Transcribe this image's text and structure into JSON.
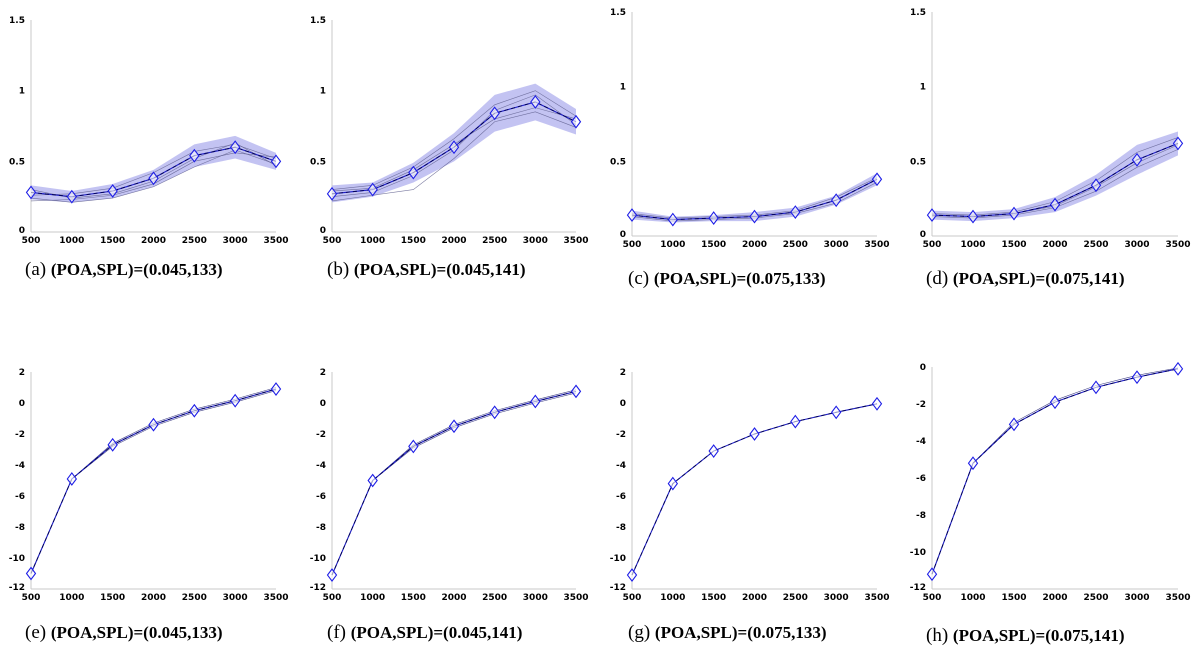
{
  "figure": {
    "x_ticks": [
      "500",
      "1000",
      "1500",
      "2000",
      "2500",
      "3000",
      "3500"
    ]
  },
  "chart_data": [
    {
      "type": "line",
      "panel": "a",
      "caption_label": "(a)",
      "caption_text": "(POA,SPL)=(0.045,133)",
      "x": [
        500,
        1000,
        1500,
        2000,
        2500,
        3000,
        3500
      ],
      "xlim": [
        500,
        3500
      ],
      "ylim": [
        0,
        1.5
      ],
      "y_ticks": [
        "0",
        "0.5",
        "1",
        "1.5"
      ],
      "band": true,
      "mean": [
        0.28,
        0.25,
        0.29,
        0.38,
        0.54,
        0.6,
        0.5
      ],
      "spread": [
        0.05,
        0.04,
        0.05,
        0.06,
        0.08,
        0.08,
        0.06
      ],
      "subject_curves": [
        [
          0.24,
          0.21,
          0.24,
          0.32,
          0.46,
          0.58,
          0.48
        ],
        [
          0.26,
          0.27,
          0.31,
          0.42,
          0.57,
          0.62,
          0.52
        ],
        [
          0.3,
          0.24,
          0.27,
          0.36,
          0.52,
          0.63,
          0.47
        ],
        [
          0.22,
          0.23,
          0.26,
          0.34,
          0.5,
          0.56,
          0.53
        ]
      ]
    },
    {
      "type": "line",
      "panel": "b",
      "caption_label": "(b)",
      "caption_text": "(POA,SPL)=(0.045,141)",
      "x": [
        500,
        1000,
        1500,
        2000,
        2500,
        3000,
        3500
      ],
      "xlim": [
        500,
        3500
      ],
      "ylim": [
        0,
        1.5
      ],
      "y_ticks": [
        "0",
        "0.5",
        "1",
        "1.5"
      ],
      "band": true,
      "mean": [
        0.27,
        0.3,
        0.42,
        0.6,
        0.84,
        0.92,
        0.78
      ],
      "spread": [
        0.06,
        0.05,
        0.07,
        0.1,
        0.13,
        0.13,
        0.09
      ],
      "subject_curves": [
        [
          0.22,
          0.26,
          0.3,
          0.52,
          0.78,
          0.85,
          0.74
        ],
        [
          0.3,
          0.33,
          0.46,
          0.66,
          0.9,
          1.0,
          0.82
        ],
        [
          0.25,
          0.28,
          0.4,
          0.58,
          0.86,
          0.97,
          0.76
        ],
        [
          0.29,
          0.31,
          0.44,
          0.62,
          0.8,
          0.88,
          0.8
        ]
      ]
    },
    {
      "type": "line",
      "panel": "c",
      "caption_label": "(c)",
      "caption_text": "(POA,SPL)=(0.075,133)",
      "x": [
        500,
        1000,
        1500,
        2000,
        2500,
        3000,
        3500
      ],
      "xlim": [
        500,
        3500
      ],
      "ylim": [
        0,
        1.5
      ],
      "y_ticks": [
        "0",
        "0.5",
        "1",
        "1.5"
      ],
      "band": true,
      "mean": [
        0.14,
        0.11,
        0.12,
        0.13,
        0.16,
        0.24,
        0.38
      ],
      "spread": [
        0.03,
        0.02,
        0.02,
        0.03,
        0.03,
        0.03,
        0.04
      ],
      "subject_curves": [
        [
          0.13,
          0.1,
          0.11,
          0.12,
          0.15,
          0.22,
          0.36
        ],
        [
          0.15,
          0.12,
          0.13,
          0.14,
          0.17,
          0.26,
          0.39
        ]
      ]
    },
    {
      "type": "line",
      "panel": "d",
      "caption_label": "(d)",
      "caption_text": "(POA,SPL)=(0.075,141)",
      "x": [
        500,
        1000,
        1500,
        2000,
        2500,
        3000,
        3500
      ],
      "xlim": [
        500,
        3500
      ],
      "ylim": [
        0,
        1.5
      ],
      "y_ticks": [
        "0",
        "0.5",
        "1",
        "1.5"
      ],
      "band": true,
      "mean": [
        0.14,
        0.13,
        0.15,
        0.21,
        0.34,
        0.51,
        0.62
      ],
      "spread": [
        0.03,
        0.03,
        0.03,
        0.05,
        0.07,
        0.1,
        0.08
      ],
      "subject_curves": [
        [
          0.13,
          0.12,
          0.14,
          0.19,
          0.3,
          0.46,
          0.58
        ],
        [
          0.15,
          0.14,
          0.16,
          0.23,
          0.37,
          0.56,
          0.66
        ],
        [
          0.14,
          0.13,
          0.15,
          0.2,
          0.33,
          0.49,
          0.61
        ]
      ]
    },
    {
      "type": "line",
      "panel": "e",
      "caption_label": "(e)",
      "caption_text": "(POA,SPL)=(0.045,133)",
      "x": [
        500,
        1000,
        1500,
        2000,
        2500,
        3000,
        3500
      ],
      "xlim": [
        500,
        3500
      ],
      "ylim": [
        -12,
        2
      ],
      "y_ticks": [
        "-12",
        "-10",
        "-8",
        "-6",
        "-4",
        "-2",
        "0",
        "2"
      ],
      "band": false,
      "mean": [
        -11.0,
        -4.9,
        -2.7,
        -1.4,
        -0.5,
        0.15,
        0.9
      ],
      "spread": [
        0,
        0,
        0,
        0,
        0,
        0,
        0
      ],
      "subject_curves": [
        [
          -11.0,
          -4.9,
          -2.6,
          -1.3,
          -0.4,
          0.25,
          1.0
        ],
        [
          -11.0,
          -4.9,
          -2.8,
          -1.5,
          -0.6,
          0.05,
          0.8
        ]
      ]
    },
    {
      "type": "line",
      "panel": "f",
      "caption_label": "(f)",
      "caption_text": "(POA,SPL)=(0.045,141)",
      "x": [
        500,
        1000,
        1500,
        2000,
        2500,
        3000,
        3500
      ],
      "xlim": [
        500,
        3500
      ],
      "ylim": [
        -12,
        2
      ],
      "y_ticks": [
        "-12",
        "-10",
        "-8",
        "-6",
        "-4",
        "-2",
        "0",
        "2"
      ],
      "band": false,
      "mean": [
        -11.1,
        -5.0,
        -2.8,
        -1.5,
        -0.6,
        0.1,
        0.75
      ],
      "spread": [
        0,
        0,
        0,
        0,
        0,
        0,
        0
      ],
      "subject_curves": [
        [
          -11.1,
          -5.0,
          -2.7,
          -1.4,
          -0.5,
          0.2,
          0.85
        ],
        [
          -11.1,
          -5.0,
          -2.9,
          -1.6,
          -0.7,
          0.0,
          0.65
        ]
      ]
    },
    {
      "type": "line",
      "panel": "g",
      "caption_label": "(g)",
      "caption_text": "(POA,SPL)=(0.075,133)",
      "x": [
        500,
        1000,
        1500,
        2000,
        2500,
        3000,
        3500
      ],
      "xlim": [
        500,
        3500
      ],
      "ylim": [
        -12,
        2
      ],
      "y_ticks": [
        "-12",
        "-10",
        "-8",
        "-6",
        "-4",
        "-2",
        "0",
        "2"
      ],
      "band": false,
      "mean": [
        -11.1,
        -5.2,
        -3.1,
        -2.0,
        -1.2,
        -0.6,
        -0.05
      ],
      "spread": [
        0,
        0,
        0,
        0,
        0,
        0,
        0
      ],
      "subject_curves": []
    },
    {
      "type": "line",
      "panel": "h",
      "caption_label": "(h)",
      "caption_text": "(POA,SPL)=(0.075,141)",
      "x": [
        500,
        1000,
        1500,
        2000,
        2500,
        3000,
        3500
      ],
      "xlim": [
        500,
        3500
      ],
      "ylim": [
        -12,
        0
      ],
      "y_ticks": [
        "-12",
        "-10",
        "-8",
        "-6",
        "-4",
        "-2",
        "0"
      ],
      "band": false,
      "mean": [
        -11.2,
        -5.2,
        -3.1,
        -1.9,
        -1.1,
        -0.55,
        -0.1
      ],
      "spread": [
        0,
        0,
        0,
        0,
        0,
        0,
        0
      ],
      "subject_curves": [
        [
          -11.2,
          -5.2,
          -3.0,
          -1.8,
          -1.0,
          -0.45,
          -0.05
        ]
      ]
    }
  ]
}
